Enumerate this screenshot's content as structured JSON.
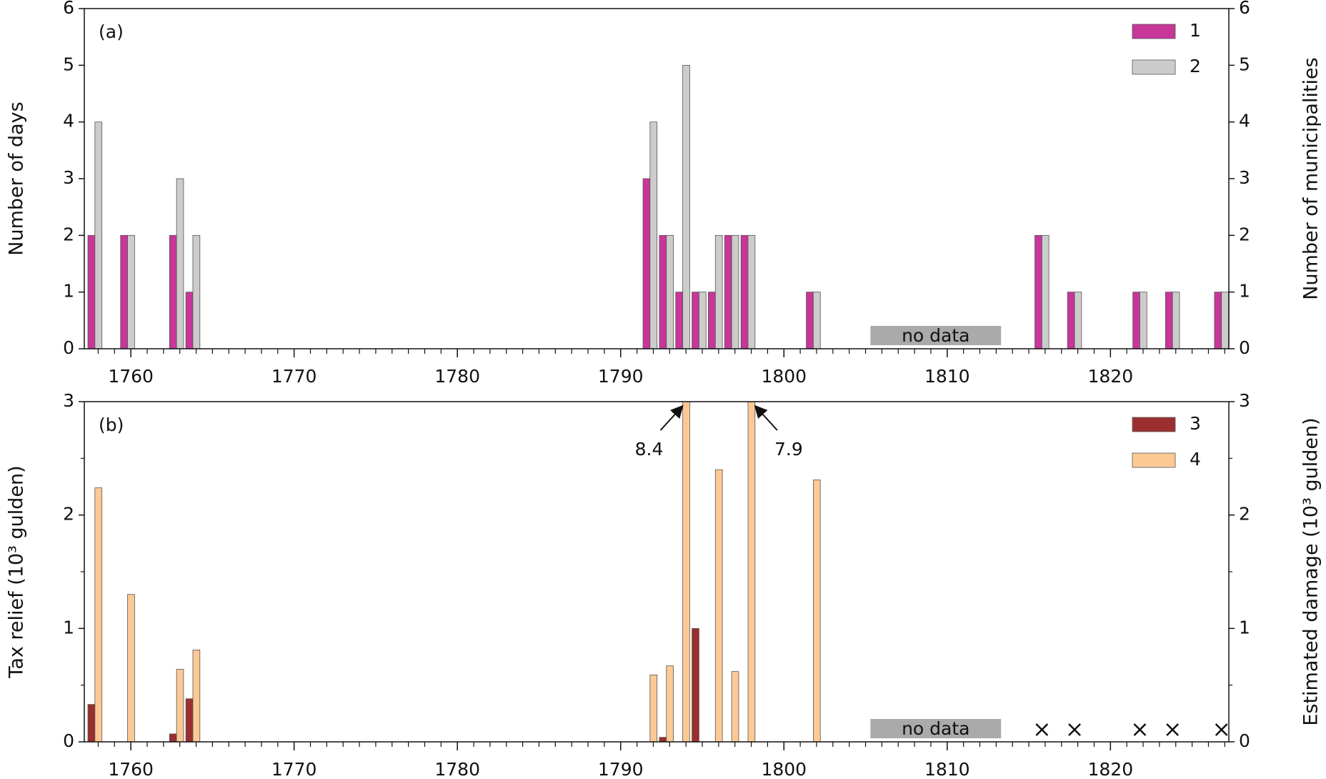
{
  "chart_data": [
    {
      "type": "bar",
      "panel_label": "(a)",
      "ylabel": "Number of days",
      "y2label": "Number of municipalities",
      "x": [
        1758,
        1760,
        1763,
        1764,
        1792,
        1793,
        1794,
        1795,
        1796,
        1797,
        1798,
        1802,
        1816,
        1818,
        1822,
        1824,
        1827
      ],
      "series": [
        {
          "name": "1",
          "color": "#c8369a",
          "values": [
            2,
            2,
            2,
            1,
            3,
            2,
            1,
            1,
            1,
            2,
            2,
            1,
            2,
            1,
            1,
            1,
            1
          ]
        },
        {
          "name": "2",
          "color": "#cccccc",
          "axis": "y2",
          "values": [
            4,
            2,
            3,
            2,
            4,
            2,
            5,
            1,
            2,
            2,
            2,
            1,
            2,
            1,
            1,
            1,
            1
          ]
        }
      ],
      "xlim": [
        1757.15,
        1827.25
      ],
      "xticks": [
        1760,
        1770,
        1780,
        1790,
        1800,
        1810,
        1820
      ],
      "xticks_minor": [
        1758,
        1759,
        1761,
        1762,
        1763,
        1764,
        1765,
        1766,
        1767,
        1768,
        1769,
        1771,
        1772,
        1773,
        1774,
        1775,
        1776,
        1777,
        1778,
        1779,
        1781,
        1782,
        1783,
        1784,
        1785,
        1786,
        1787,
        1788,
        1789,
        1791,
        1792,
        1793,
        1794,
        1795,
        1796,
        1797,
        1798,
        1799,
        1801,
        1802,
        1803,
        1804,
        1805,
        1806,
        1807,
        1808,
        1809,
        1811,
        1812,
        1813,
        1814,
        1815,
        1816,
        1817,
        1818,
        1819,
        1821,
        1822,
        1823,
        1824,
        1825,
        1826,
        1827
      ],
      "ylim": [
        0,
        6
      ],
      "yticks": [
        0,
        1,
        2,
        3,
        4,
        5,
        6
      ],
      "y2lim": [
        0,
        6
      ],
      "y2ticks": [
        0,
        1,
        2,
        3,
        4,
        5,
        6
      ],
      "no_data": {
        "text": "no data",
        "x": [
          1805.3,
          1813.3
        ]
      },
      "legend": "upper right"
    },
    {
      "type": "bar",
      "panel_label": "(b)",
      "ylabel": "Tax relief (10³ gulden)",
      "y2label": "Estimated damage (10³ gulden)",
      "x": [
        1758,
        1760,
        1763,
        1764,
        1792,
        1793,
        1794,
        1795,
        1796,
        1797,
        1798,
        1802
      ],
      "series": [
        {
          "name": "3",
          "color": "#9b2f2f",
          "values": [
            0.33,
            null,
            0.07,
            0.38,
            null,
            0.04,
            null,
            1.0,
            null,
            null,
            null,
            null
          ]
        },
        {
          "name": "4",
          "color": "#fcc995",
          "axis": "y2",
          "values": [
            2.24,
            1.3,
            0.64,
            0.81,
            0.59,
            0.67,
            8.4,
            null,
            2.4,
            0.62,
            7.9,
            2.31
          ],
          "value_labels": [
            null,
            null,
            null,
            null,
            null,
            null,
            "8.4",
            null,
            null,
            null,
            "7.9",
            null
          ]
        }
      ],
      "xlim": [
        1757.15,
        1827.25
      ],
      "xticks": [
        1760,
        1770,
        1780,
        1790,
        1800,
        1810,
        1820
      ],
      "xticks_minor": [
        1758,
        1759,
        1761,
        1762,
        1763,
        1764,
        1765,
        1766,
        1767,
        1768,
        1769,
        1771,
        1772,
        1773,
        1774,
        1775,
        1776,
        1777,
        1778,
        1779,
        1781,
        1782,
        1783,
        1784,
        1785,
        1786,
        1787,
        1788,
        1789,
        1791,
        1792,
        1793,
        1794,
        1795,
        1796,
        1797,
        1798,
        1799,
        1801,
        1802,
        1803,
        1804,
        1805,
        1806,
        1807,
        1808,
        1809,
        1811,
        1812,
        1813,
        1814,
        1815,
        1816,
        1817,
        1818,
        1819,
        1821,
        1822,
        1823,
        1824,
        1825,
        1826,
        1827
      ],
      "ylim": [
        0,
        3
      ],
      "yticks": [
        0,
        1,
        2,
        3
      ],
      "yticks_minor": [
        0.5,
        1.5,
        2.5
      ],
      "y2lim": [
        0,
        3
      ],
      "y2ticks": [
        0,
        1,
        2,
        3
      ],
      "y2ticks_minor": [
        0.5,
        1.5,
        2.5
      ],
      "no_data": {
        "text": "no data",
        "x": [
          1805.3,
          1813.3
        ]
      },
      "markers": {
        "symbol": "x",
        "x": [
          1816,
          1818,
          1822,
          1824,
          1827
        ]
      },
      "legend": "upper right"
    }
  ]
}
